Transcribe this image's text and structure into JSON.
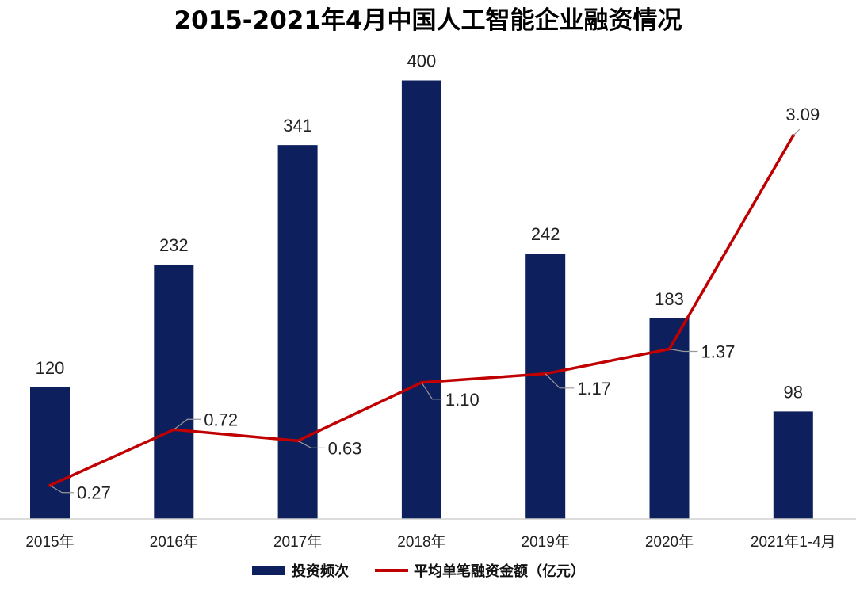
{
  "chart_data": {
    "type": "bar+line",
    "title": "2015-2021年4月中国人工智能企业融资情况",
    "categories": [
      "2015年",
      "2016年",
      "2017年",
      "2018年",
      "2019年",
      "2020年",
      "2021年1-4月"
    ],
    "series": [
      {
        "name": "投资频次",
        "type": "bar",
        "color": "#0d1f5c",
        "values": [
          120,
          232,
          341,
          400,
          242,
          183,
          98
        ],
        "labels": [
          "120",
          "232",
          "341",
          "400",
          "242",
          "183",
          "98"
        ]
      },
      {
        "name": "平均单笔融资金额（亿元）",
        "type": "line",
        "color": "#c00000",
        "values": [
          0.27,
          0.72,
          0.63,
          1.1,
          1.17,
          1.37,
          3.09
        ],
        "labels": [
          "0.27",
          "0.72",
          "0.63",
          "1.10",
          "1.17",
          "1.37",
          "3.09"
        ]
      }
    ],
    "ylim_bar": [
      0,
      430
    ],
    "ylim_line": [
      0,
      3.8
    ],
    "legend": "bottom",
    "grid": false
  }
}
